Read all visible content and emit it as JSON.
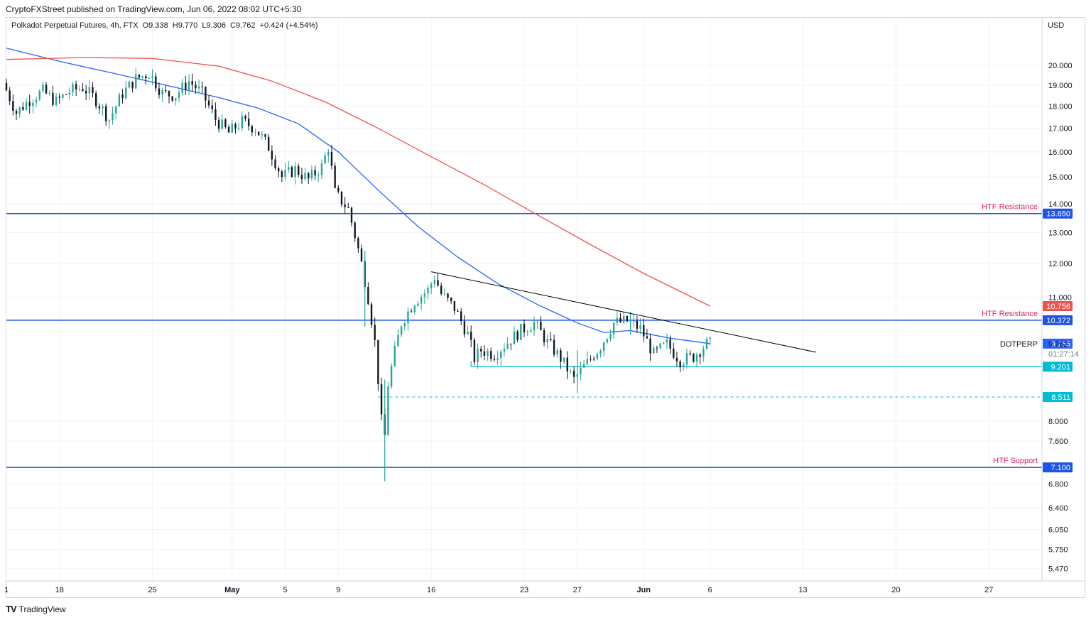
{
  "publisher_line": "CryptoFXStreet published on TradingView.com, Jun 06, 2022 08:02 UTC+5:30",
  "legend": {
    "symbol": "Polkadot Perpetual Futures, 4h, FTX",
    "open": "O9.338",
    "high": "H9.770",
    "low": "L9.306",
    "close": "C9.762",
    "change": "+0.424 (+4.54%)"
  },
  "currency": "USD",
  "footer": {
    "logo_icon": "tradingview-logo-icon",
    "brand": "TradingView"
  },
  "colors": {
    "up": "#26a69a",
    "down": "#131722",
    "ma_fast": "#2962ff",
    "ma_slow": "#ef5350",
    "level": "#1e53e5",
    "cyan": "#00bcd4",
    "trend": "#000000",
    "annotation": "#e91e63"
  },
  "chart_data": {
    "type": "candlestick",
    "scale": "log",
    "ylim": [
      5.3,
      22.6
    ],
    "y_ticks": [
      "20.000",
      "19.000",
      "18.000",
      "17.000",
      "16.000",
      "15.000",
      "14.000",
      "13.000",
      "12.000",
      "11.000",
      "8.000",
      "7.600",
      "6.800",
      "6.400",
      "6.050",
      "5.750",
      "5.470"
    ],
    "x_ticks": [
      "1",
      "18",
      "25",
      "May",
      "5",
      "9",
      "16",
      "23",
      "27",
      "Jun",
      "6",
      "13",
      "20",
      "27"
    ],
    "x_domain": [
      "2022-04-14",
      "2022-07-01"
    ],
    "horizontal_levels": [
      {
        "label": "HTF Resistance",
        "value": 13.65,
        "value_label": "13.650",
        "color": "#1e53e5"
      },
      {
        "label": "HTF Resistance",
        "value": 10.372,
        "value_label": "10.372",
        "color": "#1e53e5"
      },
      {
        "label": "HTF Support",
        "value": 7.1,
        "value_label": "7.100",
        "color": "#1e53e5"
      }
    ],
    "range_low": {
      "value": 9.201,
      "value_label": "9.201",
      "start": "2022-05-19",
      "color": "#00bcd4"
    },
    "dashed_level": {
      "value": 8.511,
      "value_label": "8.511",
      "start": "2022-05-12",
      "color": "#00bcd4"
    },
    "trendline": {
      "start": [
        "2022-05-16",
        11.75
      ],
      "end": [
        "2022-06-14",
        9.55
      ]
    },
    "price_badges": [
      {
        "value": 10.756,
        "label": "10.756",
        "color": "#ef5350"
      },
      {
        "value": 9.765,
        "label": "9.765",
        "color": "#2962ff"
      }
    ],
    "current": {
      "symbol": "DOTPERP",
      "price": "9.762",
      "countdown": "01:27:14",
      "value": 9.762
    },
    "moving_averages": [
      {
        "color": "#2962ff",
        "points": [
          [
            "2022-04-14",
            20.9
          ],
          [
            "2022-04-18",
            20.2
          ],
          [
            "2022-04-22",
            19.6
          ],
          [
            "2022-04-26",
            19.0
          ],
          [
            "2022-04-30",
            18.4
          ],
          [
            "2022-05-03",
            17.9
          ],
          [
            "2022-05-06",
            17.2
          ],
          [
            "2022-05-09",
            16.0
          ],
          [
            "2022-05-12",
            14.5
          ],
          [
            "2022-05-15",
            13.2
          ],
          [
            "2022-05-18",
            12.2
          ],
          [
            "2022-05-21",
            11.4
          ],
          [
            "2022-05-24",
            10.8
          ],
          [
            "2022-05-27",
            10.3
          ],
          [
            "2022-05-29",
            10.05
          ],
          [
            "2022-05-31",
            10.1
          ],
          [
            "2022-06-03",
            9.9
          ],
          [
            "2022-06-06",
            9.765
          ]
        ]
      },
      {
        "color": "#ef5350",
        "points": [
          [
            "2022-04-14",
            20.3
          ],
          [
            "2022-04-20",
            20.4
          ],
          [
            "2022-04-25",
            20.35
          ],
          [
            "2022-04-30",
            19.95
          ],
          [
            "2022-05-04",
            19.2
          ],
          [
            "2022-05-08",
            18.2
          ],
          [
            "2022-05-12",
            17.0
          ],
          [
            "2022-05-16",
            15.8
          ],
          [
            "2022-05-20",
            14.7
          ],
          [
            "2022-05-24",
            13.6
          ],
          [
            "2022-05-28",
            12.6
          ],
          [
            "2022-06-01",
            11.7
          ],
          [
            "2022-06-06",
            10.756
          ]
        ]
      }
    ],
    "price_path": [
      [
        "2022-04-14",
        19.1
      ],
      [
        "2022-04-15",
        17.7
      ],
      [
        "2022-04-16",
        18.3
      ],
      [
        "2022-04-17",
        18.7
      ],
      [
        "2022-04-18",
        18.2
      ],
      [
        "2022-04-19",
        18.7
      ],
      [
        "2022-04-20",
        18.9
      ],
      [
        "2022-04-21",
        18.3
      ],
      [
        "2022-04-22",
        17.4
      ],
      [
        "2022-04-23",
        18.6
      ],
      [
        "2022-04-24",
        19.3
      ],
      [
        "2022-04-25",
        19.6
      ],
      [
        "2022-04-26",
        18.6
      ],
      [
        "2022-04-27",
        18.5
      ],
      [
        "2022-04-28",
        19.2
      ],
      [
        "2022-04-29",
        18.6
      ],
      [
        "2022-04-30",
        17.4
      ],
      [
        "2022-05-01",
        16.8
      ],
      [
        "2022-05-02",
        17.3
      ],
      [
        "2022-05-03",
        17.0
      ],
      [
        "2022-05-04",
        16.2
      ],
      [
        "2022-05-05",
        15.0
      ],
      [
        "2022-05-06",
        15.3
      ],
      [
        "2022-05-07",
        14.9
      ],
      [
        "2022-05-08",
        15.4
      ],
      [
        "2022-05-08T12",
        16.2
      ],
      [
        "2022-05-09",
        14.4
      ],
      [
        "2022-05-10",
        13.8
      ],
      [
        "2022-05-11",
        12.0
      ],
      [
        "2022-05-11T12",
        11.0
      ],
      [
        "2022-05-12",
        9.8
      ],
      [
        "2022-05-12T12",
        8.0
      ],
      [
        "2022-05-12T18",
        7.7
      ],
      [
        "2022-05-13",
        8.8
      ],
      [
        "2022-05-14",
        10.3
      ],
      [
        "2022-05-15",
        10.9
      ],
      [
        "2022-05-16",
        11.2
      ],
      [
        "2022-05-16T12",
        11.6
      ],
      [
        "2022-05-17",
        11.1
      ],
      [
        "2022-05-18",
        10.7
      ],
      [
        "2022-05-19",
        10.0
      ],
      [
        "2022-05-19T12",
        9.4
      ],
      [
        "2022-05-20",
        9.6
      ],
      [
        "2022-05-21",
        9.5
      ],
      [
        "2022-05-22",
        9.8
      ],
      [
        "2022-05-23",
        10.1
      ],
      [
        "2022-05-24",
        10.3
      ],
      [
        "2022-05-25",
        9.8
      ],
      [
        "2022-05-26",
        9.4
      ],
      [
        "2022-05-27",
        8.9
      ],
      [
        "2022-05-28",
        9.3
      ],
      [
        "2022-05-29",
        9.7
      ],
      [
        "2022-05-30",
        10.3
      ],
      [
        "2022-05-31",
        10.35
      ],
      [
        "2022-06-01",
        10.15
      ],
      [
        "2022-06-02",
        9.5
      ],
      [
        "2022-06-03",
        9.75
      ],
      [
        "2022-06-04",
        9.35
      ],
      [
        "2022-06-05",
        9.45
      ],
      [
        "2022-06-06",
        9.762
      ]
    ],
    "extremes": [
      {
        "date": "2022-05-12T12",
        "high": 8.9,
        "low": 6.85
      },
      {
        "date": "2022-05-11",
        "high": 12.4,
        "low": 10.2
      },
      {
        "date": "2022-04-25",
        "high": 19.8,
        "low": 19.0
      },
      {
        "date": "2022-05-27",
        "high": 9.6,
        "low": 8.6
      },
      {
        "date": "2022-05-31",
        "high": 10.6,
        "low": 10.0
      }
    ]
  }
}
